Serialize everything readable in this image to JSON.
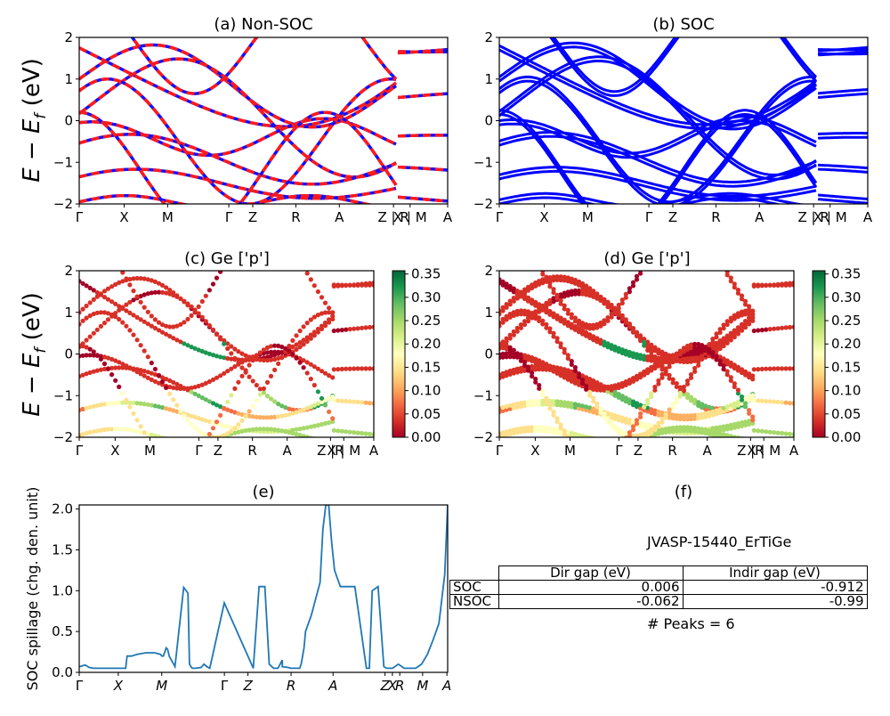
{
  "chart_data": [
    {
      "panel": "a",
      "type": "line",
      "title": "(a) Non-SOC",
      "ylabel": "E - E_f (eV)",
      "ylim": [
        -2,
        2
      ],
      "yticks": [
        "2",
        "1",
        "0",
        "−1",
        "−2"
      ],
      "xticks": [
        "Γ",
        "X",
        "M",
        "Γ",
        "Z",
        "R",
        "A",
        "Z | R",
        "X | M",
        "A"
      ],
      "series_colors": [
        "#1010ff",
        "#ff1a1a"
      ],
      "line_style": "red dashed over blue solid",
      "bands_approx_energy_at_Gamma": [
        1.75,
        1.0,
        0.1,
        -0.4,
        -0.85,
        -1.55,
        -1.95
      ],
      "bands_approx_energy_at_A": [
        1.8,
        0.55,
        -0.5,
        -1.25,
        -1.85
      ]
    },
    {
      "panel": "b",
      "type": "line",
      "title": "(b) SOC",
      "ylim": [
        -2,
        2
      ],
      "yticks": [
        "2",
        "1",
        "0",
        "−1",
        "−2"
      ],
      "xticks": [
        "Γ",
        "X",
        "M",
        "Γ",
        "Z",
        "R",
        "A",
        "Z | R",
        "X | M",
        "A"
      ],
      "series_colors": [
        "#0000ff"
      ]
    },
    {
      "panel": "c",
      "type": "scatter",
      "title": "(c)  Ge ['p']",
      "ylabel": "E - E_f (eV)",
      "ylim": [
        -2,
        2
      ],
      "yticks": [
        "2",
        "1",
        "0",
        "−1",
        "−2"
      ],
      "xticks": [
        "Γ",
        "X",
        "M",
        "Γ",
        "Z",
        "R",
        "A",
        "Z |R",
        "X | M",
        "A"
      ],
      "colorbar": {
        "min": 0.0,
        "max": 0.35,
        "ticks": [
          "0.35",
          "0.30",
          "0.25",
          "0.20",
          "0.15",
          "0.10",
          "0.05",
          "0.00"
        ],
        "cmap": "RdYlGn"
      }
    },
    {
      "panel": "d",
      "type": "scatter",
      "title": "(d) Ge ['p']",
      "ylim": [
        -2,
        2
      ],
      "yticks": [
        "2",
        "1",
        "0",
        "−1",
        "−2"
      ],
      "xticks": [
        "Γ",
        "X",
        "M",
        "Γ",
        "Z",
        "R",
        "A",
        "Z |R",
        "X | M",
        "A"
      ],
      "colorbar": {
        "min": 0.0,
        "max": 0.35,
        "ticks": [
          "0.35",
          "0.30",
          "0.25",
          "0.20",
          "0.15",
          "0.10",
          "0.05",
          "0.00"
        ],
        "cmap": "RdYlGn"
      }
    },
    {
      "panel": "e",
      "type": "line",
      "title": "(e)",
      "ylabel": "SOC spillage (chg. den. unit)",
      "ylim": [
        0,
        2.05
      ],
      "yticks": [
        "0.0",
        "0.5",
        "1.0",
        "1.5",
        "2.0"
      ],
      "xticks": [
        "Γ",
        "X",
        "M",
        "Γ",
        "Z",
        "R",
        "A",
        "Z",
        "X",
        "R",
        "M",
        "A"
      ],
      "color": "#1f77b4",
      "x": [
        0.0,
        0.01,
        0.02,
        0.035,
        0.05,
        0.08,
        0.1,
        0.13,
        0.16,
        0.165,
        0.18,
        0.2,
        0.23,
        0.26,
        0.27,
        0.28,
        0.285,
        0.29,
        0.3,
        0.305,
        0.31,
        0.33,
        0.36,
        0.375,
        0.38,
        0.385,
        0.39,
        0.395,
        0.4,
        0.42,
        0.425,
        0.43,
        0.44,
        0.45,
        0.5,
        0.6,
        0.62,
        0.64,
        0.655,
        0.67,
        0.685,
        0.7,
        0.7,
        0.72,
        0.73,
        0.74,
        0.745,
        0.75,
        0.755,
        0.76,
        0.76,
        0.765,
        0.77,
        0.775,
        0.78,
        0.8,
        0.83,
        0.84,
        0.85,
        0.86,
        0.87,
        0.88,
        0.9,
        0.95,
        0.99,
        1.0,
        1.01,
        1.03,
        1.05,
        1.06,
        1.08,
        1.1,
        1.12,
        1.14,
        1.16,
        1.18,
        1.2,
        1.22,
        1.24,
        1.26,
        1.27
      ],
      "y": [
        0.07,
        0.08,
        0.09,
        0.06,
        0.05,
        0.05,
        0.05,
        0.05,
        0.05,
        0.2,
        0.2,
        0.22,
        0.24,
        0.24,
        0.23,
        0.22,
        0.2,
        0.2,
        0.3,
        0.28,
        0.2,
        0.07,
        1.04,
        0.97,
        0.1,
        0.07,
        0.05,
        0.05,
        0.05,
        0.06,
        0.08,
        0.1,
        0.07,
        0.05,
        0.85,
        0.05,
        1.05,
        1.05,
        0.1,
        0.05,
        0.05,
        0.15,
        0.07,
        0.06,
        0.05,
        0.05,
        0.05,
        0.05,
        0.05,
        0.05,
        0.05,
        0.1,
        0.2,
        0.3,
        0.5,
        0.7,
        1.1,
        1.75,
        2.05,
        2.05,
        1.6,
        1.25,
        1.05,
        1.05,
        0.05,
        0.05,
        1.0,
        1.05,
        0.07,
        0.05,
        0.05,
        0.1,
        0.05,
        0.05,
        0.05,
        0.1,
        0.22,
        0.4,
        0.6,
        1.2,
        2.05
      ]
    }
  ],
  "panel_f": {
    "title": "(f)",
    "material": "JVASP-15440_ErTiGe",
    "table": {
      "columns": [
        "Dir gap (eV)",
        "Indir gap (eV)"
      ],
      "rows": [
        {
          "label": "SOC",
          "dir": "0.006",
          "indir": "-0.912"
        },
        {
          "label": "NSOC",
          "dir": "-0.062",
          "indir": "-0.99"
        }
      ]
    },
    "peaks": "# Peaks = 6"
  },
  "cmap_colors": [
    "#a50026",
    "#d73027",
    "#f46d43",
    "#fdae61",
    "#fee08b",
    "#ffffbf",
    "#d9ef8b",
    "#a6d96a",
    "#66bd63",
    "#1a9850",
    "#006837"
  ]
}
